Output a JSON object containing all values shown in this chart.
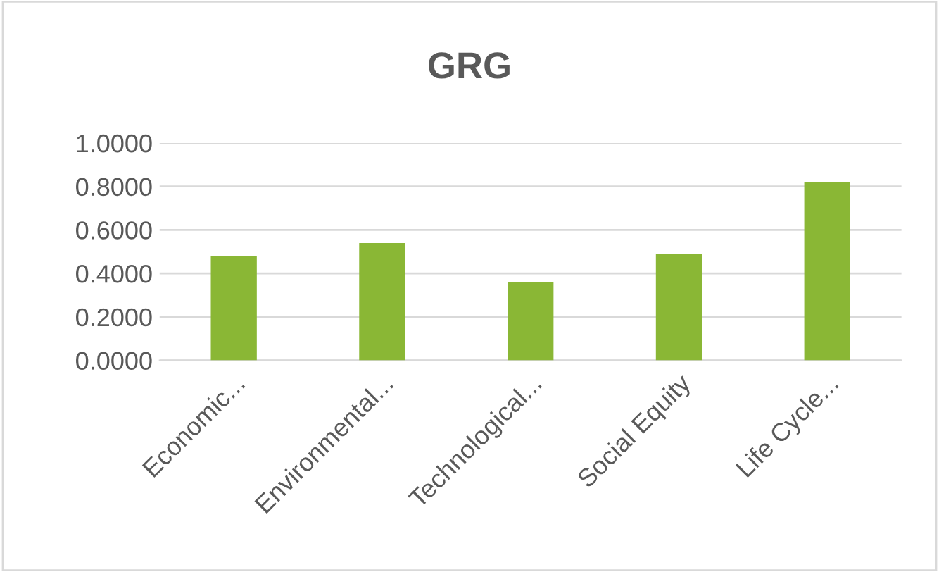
{
  "chart_data": {
    "type": "bar",
    "title": "GRG",
    "categories": [
      "Economic...",
      "Environmental...",
      "Technological...",
      "Social Equity",
      "Life Cycle..."
    ],
    "values": [
      0.48,
      0.54,
      0.36,
      0.49,
      0.82
    ],
    "color": "#8ab735",
    "ylim": [
      0,
      1
    ],
    "yticks": [
      {
        "value": 0,
        "label": "0.0000"
      },
      {
        "value": 0.2,
        "label": "0.2000"
      },
      {
        "value": 0.4,
        "label": "0.4000"
      },
      {
        "value": 0.6,
        "label": "0.6000"
      },
      {
        "value": 0.8,
        "label": "0.8000"
      },
      {
        "value": 1,
        "label": "1.0000"
      }
    ],
    "grid": "y",
    "legend": false
  }
}
